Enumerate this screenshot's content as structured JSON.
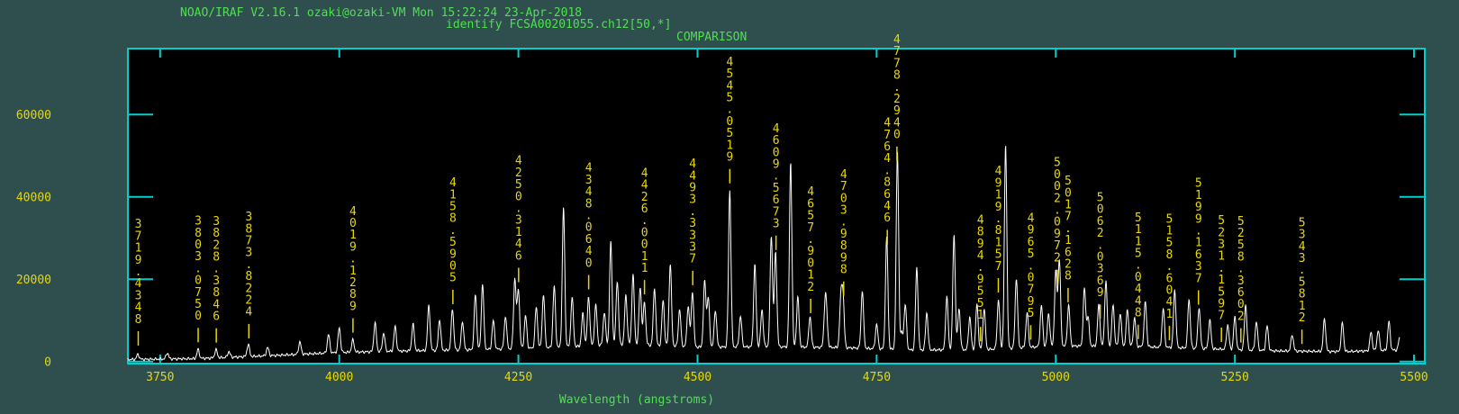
{
  "header": {
    "line1": "NOAO/IRAF V2.16.1 ozaki@ozaki-VM Mon 15:22:24 23-Apr-2018",
    "line2": "identify FCSA00201055.ch12[50,*]",
    "line3": "COMPARISON"
  },
  "colors": {
    "background": "#2f4f4f",
    "plot_area": "#000000",
    "frame": "#00d0d0",
    "spectrum": "#ffffff",
    "annotation": "#e8d800",
    "tick_label": "#e8d800",
    "header_text": "#4ee04e",
    "xlabel_text": "#4ee04e"
  },
  "chart_data": {
    "type": "line",
    "title": "",
    "xlabel": "Wavelength (angstroms)",
    "ylabel": "",
    "xlim": [
      3705,
      5515
    ],
    "ylim": [
      -500,
      76000
    ],
    "x_ticks": [
      3750,
      4000,
      4250,
      4500,
      4750,
      5000,
      5250,
      5500
    ],
    "x_tick_labels": [
      "3750",
      "4000",
      "4250",
      "4500",
      "4750",
      "5000",
      "5250",
      "5500"
    ],
    "y_ticks": [
      0,
      20000,
      40000,
      60000
    ],
    "y_tick_labels": [
      "0",
      "20000",
      "40000",
      "60000"
    ],
    "grid": false,
    "continuum": [
      [
        3705,
        500
      ],
      [
        3800,
        700
      ],
      [
        3900,
        1400
      ],
      [
        4000,
        2200
      ],
      [
        4100,
        2600
      ],
      [
        4200,
        2900
      ],
      [
        4300,
        3400
      ],
      [
        4400,
        4200
      ],
      [
        4500,
        3500
      ],
      [
        4600,
        3600
      ],
      [
        4700,
        3400
      ],
      [
        4800,
        2800
      ],
      [
        4900,
        2900
      ],
      [
        5000,
        3800
      ],
      [
        5100,
        3700
      ],
      [
        5200,
        3200
      ],
      [
        5300,
        2600
      ],
      [
        5400,
        2400
      ],
      [
        5480,
        2800
      ]
    ],
    "peaks": [
      [
        3719,
        1200
      ],
      [
        3760,
        1500
      ],
      [
        3803,
        2200
      ],
      [
        3828,
        2000
      ],
      [
        3846,
        1400
      ],
      [
        3873,
        3000
      ],
      [
        3900,
        2000
      ],
      [
        3945,
        3000
      ],
      [
        3985,
        4500
      ],
      [
        4000,
        6000
      ],
      [
        4019,
        3000
      ],
      [
        4050,
        7000
      ],
      [
        4062,
        4500
      ],
      [
        4078,
        6000
      ],
      [
        4103,
        6500
      ],
      [
        4125,
        11000
      ],
      [
        4140,
        7500
      ],
      [
        4158,
        10000
      ],
      [
        4172,
        7000
      ],
      [
        4190,
        13500
      ],
      [
        4200,
        16000
      ],
      [
        4215,
        7000
      ],
      [
        4232,
        8000
      ],
      [
        4245,
        17000
      ],
      [
        4250,
        14500
      ],
      [
        4260,
        8000
      ],
      [
        4275,
        10000
      ],
      [
        4285,
        13000
      ],
      [
        4300,
        15000
      ],
      [
        4313,
        34000
      ],
      [
        4325,
        12000
      ],
      [
        4340,
        8000
      ],
      [
        4348,
        12000
      ],
      [
        4358,
        10000
      ],
      [
        4370,
        8000
      ],
      [
        4379,
        25000
      ],
      [
        4388,
        15500
      ],
      [
        4400,
        12000
      ],
      [
        4410,
        17000
      ],
      [
        4420,
        14000
      ],
      [
        4426,
        10500
      ],
      [
        4440,
        14000
      ],
      [
        4452,
        11000
      ],
      [
        4462,
        20000
      ],
      [
        4475,
        9000
      ],
      [
        4487,
        10000
      ],
      [
        4493,
        13500
      ],
      [
        4510,
        16000
      ],
      [
        4515,
        12000
      ],
      [
        4525,
        9000
      ],
      [
        4545,
        38000
      ],
      [
        4560,
        7500
      ],
      [
        4580,
        20000
      ],
      [
        4590,
        9000
      ],
      [
        4603,
        27000
      ],
      [
        4609,
        23000
      ],
      [
        4630,
        45000
      ],
      [
        4640,
        12000
      ],
      [
        4657,
        7500
      ],
      [
        4678,
        9000
      ],
      [
        4680,
        6500
      ],
      [
        4700,
        11000
      ],
      [
        4703,
        12000
      ],
      [
        4730,
        14000
      ],
      [
        4750,
        6000
      ],
      [
        4764,
        27000
      ],
      [
        4779,
        48000
      ],
      [
        4785,
        4000
      ],
      [
        4790,
        11000
      ],
      [
        4806,
        20000
      ],
      [
        4820,
        9000
      ],
      [
        4848,
        13000
      ],
      [
        4858,
        28000
      ],
      [
        4865,
        10000
      ],
      [
        4880,
        8000
      ],
      [
        4890,
        11000
      ],
      [
        4900,
        10000
      ],
      [
        4920,
        12000
      ],
      [
        4930,
        49500
      ],
      [
        4945,
        17000
      ],
      [
        4960,
        8500
      ],
      [
        4980,
        10000
      ],
      [
        4990,
        8000
      ],
      [
        5000,
        18000
      ],
      [
        5005,
        21000
      ],
      [
        5018,
        10000
      ],
      [
        5040,
        14000
      ],
      [
        5045,
        7000
      ],
      [
        5060,
        10000
      ],
      [
        5070,
        16000
      ],
      [
        5080,
        10000
      ],
      [
        5090,
        8000
      ],
      [
        5100,
        9000
      ],
      [
        5110,
        7000
      ],
      [
        5125,
        11000
      ],
      [
        5150,
        9500
      ],
      [
        5166,
        14000
      ],
      [
        5186,
        12000
      ],
      [
        5200,
        10000
      ],
      [
        5215,
        7000
      ],
      [
        5240,
        6000
      ],
      [
        5250,
        8000
      ],
      [
        5265,
        11000
      ],
      [
        5280,
        7000
      ],
      [
        5295,
        6000
      ],
      [
        5330,
        4000
      ],
      [
        5375,
        8000
      ],
      [
        5400,
        7000
      ],
      [
        5440,
        4500
      ],
      [
        5450,
        5000
      ],
      [
        5465,
        7000
      ],
      [
        5480,
        3000
      ]
    ],
    "identified_lines": [
      {
        "label": "3719.4348",
        "x": 3719.4348
      },
      {
        "label": "3803.0750",
        "x": 3803.075
      },
      {
        "label": "3828.3846",
        "x": 3828.3846
      },
      {
        "label": "3873.8224",
        "x": 3873.8224
      },
      {
        "label": "4019.1289",
        "x": 4019.1289
      },
      {
        "label": "4158.5905",
        "x": 4158.5905
      },
      {
        "label": "4250.3146",
        "x": 4250.3146
      },
      {
        "label": "4348.0640",
        "x": 4348.064
      },
      {
        "label": "4426.0011",
        "x": 4426.0011
      },
      {
        "label": "4493.3337",
        "x": 4493.3337
      },
      {
        "label": "4545.0519",
        "x": 4545.0519
      },
      {
        "label": "4609.5673",
        "x": 4609.5673
      },
      {
        "label": "4657.9012",
        "x": 4657.9012
      },
      {
        "label": "4703.9898",
        "x": 4703.9898
      },
      {
        "label": "4764.8646",
        "x": 4764.8646
      },
      {
        "label": "4778.2940",
        "x": 4778.294
      },
      {
        "label": "4894.9551",
        "x": 4894.9551
      },
      {
        "label": "4919.8157",
        "x": 4919.8157
      },
      {
        "label": "4965.0795",
        "x": 4965.0795
      },
      {
        "label": "5002.0972",
        "x": 5002.0972
      },
      {
        "label": "5017.1628",
        "x": 5017.1628
      },
      {
        "label": "5062.0369",
        "x": 5062.0369
      },
      {
        "label": "5115.0448",
        "x": 5115.0448
      },
      {
        "label": "5158.6041",
        "x": 5158.6041
      },
      {
        "label": "5199.1637",
        "x": 5199.1637
      },
      {
        "label": "5231.1597",
        "x": 5231.1597
      },
      {
        "label": "5258.3602",
        "x": 5258.3602
      },
      {
        "label": "5343.5812",
        "x": 5343.5812
      }
    ]
  }
}
